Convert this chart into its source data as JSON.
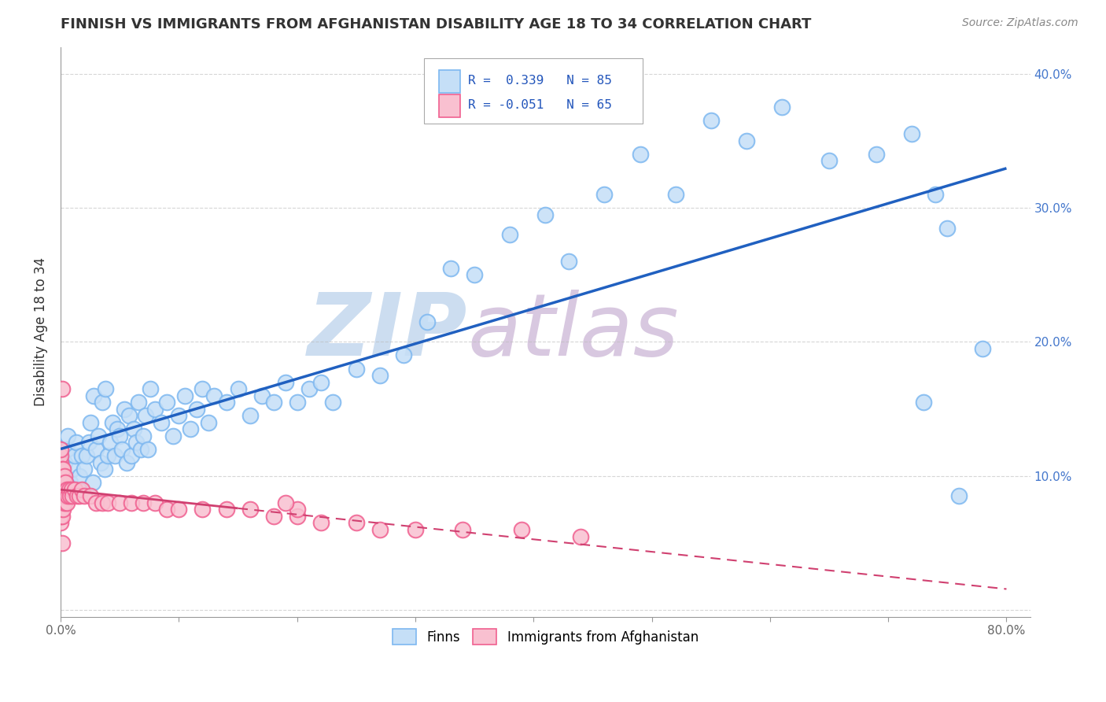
{
  "title": "FINNISH VS IMMIGRANTS FROM AFGHANISTAN DISABILITY AGE 18 TO 34 CORRELATION CHART",
  "source": "Source: ZipAtlas.com",
  "ylabel": "Disability Age 18 to 34",
  "xlim": [
    0.0,
    0.82
  ],
  "ylim": [
    -0.005,
    0.42
  ],
  "xticks": [
    0.0,
    0.1,
    0.2,
    0.3,
    0.4,
    0.5,
    0.6,
    0.7,
    0.8
  ],
  "yticks_right": [
    0.0,
    0.1,
    0.2,
    0.3,
    0.4
  ],
  "ytick_labels_right": [
    "",
    "10.0%",
    "20.0%",
    "30.0%",
    "40.0%"
  ],
  "xtick_labels": [
    "0.0%",
    "",
    "",
    "",
    "",
    "",
    "",
    "",
    "80.0%"
  ],
  "R_finns": 0.339,
  "N_finns": 85,
  "R_afghanistan": -0.051,
  "N_afghanistan": 65,
  "legend_labels": [
    "Finns",
    "Immigrants from Afghanistan"
  ],
  "blue_color": "#7eb8f0",
  "pink_color": "#f06090",
  "blue_fill": "#c5dff7",
  "pink_fill": "#f9c0d0",
  "line_blue": "#2060c0",
  "line_pink": "#d04070",
  "watermark_zip": "ZIP",
  "watermark_atlas": "atlas",
  "watermark_color_zip": "#ccddf0",
  "watermark_color_atlas": "#d8c8e0",
  "grid_color": "#bbbbbb",
  "background_color": "#ffffff",
  "finns_x": [
    0.003,
    0.005,
    0.006,
    0.008,
    0.01,
    0.012,
    0.013,
    0.015,
    0.016,
    0.018,
    0.02,
    0.022,
    0.024,
    0.025,
    0.027,
    0.028,
    0.03,
    0.032,
    0.034,
    0.035,
    0.037,
    0.038,
    0.04,
    0.042,
    0.044,
    0.046,
    0.048,
    0.05,
    0.052,
    0.054,
    0.056,
    0.058,
    0.06,
    0.062,
    0.064,
    0.066,
    0.068,
    0.07,
    0.072,
    0.074,
    0.076,
    0.08,
    0.085,
    0.09,
    0.095,
    0.1,
    0.105,
    0.11,
    0.115,
    0.12,
    0.125,
    0.13,
    0.14,
    0.15,
    0.16,
    0.17,
    0.18,
    0.19,
    0.2,
    0.21,
    0.22,
    0.23,
    0.25,
    0.27,
    0.29,
    0.31,
    0.33,
    0.35,
    0.38,
    0.41,
    0.43,
    0.46,
    0.49,
    0.52,
    0.55,
    0.58,
    0.61,
    0.65,
    0.69,
    0.72,
    0.73,
    0.74,
    0.75,
    0.76,
    0.78
  ],
  "finns_y": [
    0.11,
    0.12,
    0.13,
    0.095,
    0.105,
    0.115,
    0.125,
    0.09,
    0.1,
    0.115,
    0.105,
    0.115,
    0.125,
    0.14,
    0.095,
    0.16,
    0.12,
    0.13,
    0.11,
    0.155,
    0.105,
    0.165,
    0.115,
    0.125,
    0.14,
    0.115,
    0.135,
    0.13,
    0.12,
    0.15,
    0.11,
    0.145,
    0.115,
    0.135,
    0.125,
    0.155,
    0.12,
    0.13,
    0.145,
    0.12,
    0.165,
    0.15,
    0.14,
    0.155,
    0.13,
    0.145,
    0.16,
    0.135,
    0.15,
    0.165,
    0.14,
    0.16,
    0.155,
    0.165,
    0.145,
    0.16,
    0.155,
    0.17,
    0.155,
    0.165,
    0.17,
    0.155,
    0.18,
    0.175,
    0.19,
    0.215,
    0.255,
    0.25,
    0.28,
    0.295,
    0.26,
    0.31,
    0.34,
    0.31,
    0.365,
    0.35,
    0.375,
    0.335,
    0.34,
    0.355,
    0.155,
    0.31,
    0.285,
    0.085,
    0.195
  ],
  "afghan_x": [
    0.0,
    0.0,
    0.0,
    0.0,
    0.0,
    0.0,
    0.0,
    0.0,
    0.0,
    0.0,
    0.0,
    0.0,
    0.001,
    0.001,
    0.001,
    0.001,
    0.001,
    0.001,
    0.001,
    0.001,
    0.002,
    0.002,
    0.002,
    0.002,
    0.003,
    0.003,
    0.003,
    0.004,
    0.004,
    0.005,
    0.005,
    0.006,
    0.007,
    0.008,
    0.009,
    0.01,
    0.012,
    0.014,
    0.016,
    0.018,
    0.02,
    0.025,
    0.03,
    0.035,
    0.04,
    0.05,
    0.06,
    0.07,
    0.08,
    0.09,
    0.1,
    0.12,
    0.14,
    0.16,
    0.18,
    0.2,
    0.22,
    0.25,
    0.27,
    0.3,
    0.34,
    0.39,
    0.44,
    0.2,
    0.19
  ],
  "afghan_y": [
    0.065,
    0.07,
    0.075,
    0.08,
    0.085,
    0.09,
    0.095,
    0.1,
    0.105,
    0.11,
    0.115,
    0.12,
    0.07,
    0.08,
    0.09,
    0.095,
    0.1,
    0.105,
    0.165,
    0.05,
    0.075,
    0.085,
    0.095,
    0.105,
    0.08,
    0.09,
    0.1,
    0.085,
    0.095,
    0.08,
    0.09,
    0.085,
    0.09,
    0.085,
    0.09,
    0.085,
    0.09,
    0.085,
    0.085,
    0.09,
    0.085,
    0.085,
    0.08,
    0.08,
    0.08,
    0.08,
    0.08,
    0.08,
    0.08,
    0.075,
    0.075,
    0.075,
    0.075,
    0.075,
    0.07,
    0.07,
    0.065,
    0.065,
    0.06,
    0.06,
    0.06,
    0.06,
    0.055,
    0.075,
    0.08
  ]
}
